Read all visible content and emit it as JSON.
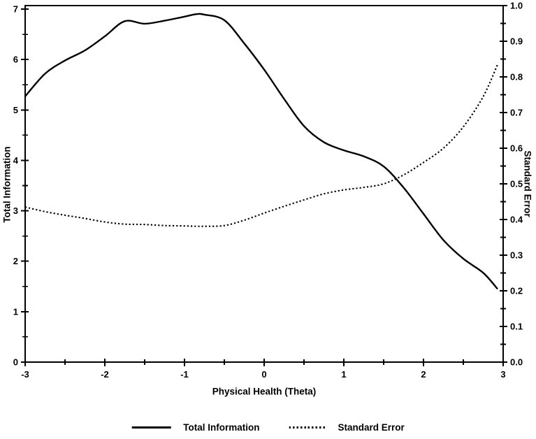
{
  "chart_data": {
    "type": "line",
    "title": "",
    "background_color": "#ffffff",
    "line_color": "#000000",
    "x": [
      -3,
      -2.75,
      -2.5,
      -2.25,
      -2,
      -1.75,
      -1.5,
      -1.25,
      -1,
      -0.85,
      -0.75,
      -0.5,
      -0.25,
      0,
      0.25,
      0.5,
      0.75,
      1,
      1.25,
      1.5,
      1.75,
      2,
      2.25,
      2.5,
      2.75,
      2.93
    ],
    "series": [
      {
        "name": "Total Information",
        "axis": "left",
        "style": "solid",
        "values": [
          5.27,
          5.72,
          5.98,
          6.18,
          6.46,
          6.76,
          6.71,
          6.77,
          6.85,
          6.9,
          6.89,
          6.78,
          6.32,
          5.8,
          5.22,
          4.68,
          4.36,
          4.2,
          4.08,
          3.88,
          3.46,
          2.94,
          2.42,
          2.05,
          1.77,
          1.45
        ]
      },
      {
        "name": "Standard Error",
        "axis": "right",
        "style": "dotted",
        "values": [
          0.435,
          0.422,
          0.412,
          0.403,
          0.393,
          0.387,
          0.386,
          0.383,
          0.382,
          0.381,
          0.381,
          0.383,
          0.398,
          0.418,
          0.437,
          0.455,
          0.472,
          0.483,
          0.49,
          0.5,
          0.525,
          0.56,
          0.6,
          0.66,
          0.745,
          0.835
        ]
      }
    ],
    "x_axis": {
      "label": "Physical Health (Theta)",
      "range": [
        -3,
        3
      ],
      "major_ticks": [
        -3,
        -2,
        -1,
        0,
        1,
        2,
        3
      ],
      "tick_labels": [
        "-3",
        "-2",
        "-1",
        "0",
        "1",
        "2",
        "3"
      ],
      "minor_step": 0.5
    },
    "left_axis": {
      "label": "Total Information",
      "range": [
        0,
        7
      ],
      "major_ticks": [
        0,
        1,
        2,
        3,
        4,
        5,
        6,
        7
      ],
      "tick_labels": [
        "0",
        "1",
        "2",
        "3",
        "4",
        "5",
        "6",
        "7"
      ],
      "minor_step": 0.5
    },
    "right_axis": {
      "label": "Standard Error",
      "range": [
        0,
        1
      ],
      "major_ticks": [
        0,
        0.1,
        0.2,
        0.3,
        0.4,
        0.5,
        0.6,
        0.7,
        0.8,
        0.9,
        1.0
      ],
      "tick_labels": [
        "0.0",
        "0.1",
        "0.2",
        "0.3",
        "0.4",
        "0.5",
        "0.6",
        "0.7",
        "0.8",
        "0.9",
        "1.0"
      ],
      "minor_step": 0.05
    },
    "legend": {
      "position": "bottom-center",
      "items": [
        {
          "label": "Total Information",
          "style": "solid"
        },
        {
          "label": "Standard Error",
          "style": "dotted"
        }
      ]
    },
    "grid": "off"
  }
}
